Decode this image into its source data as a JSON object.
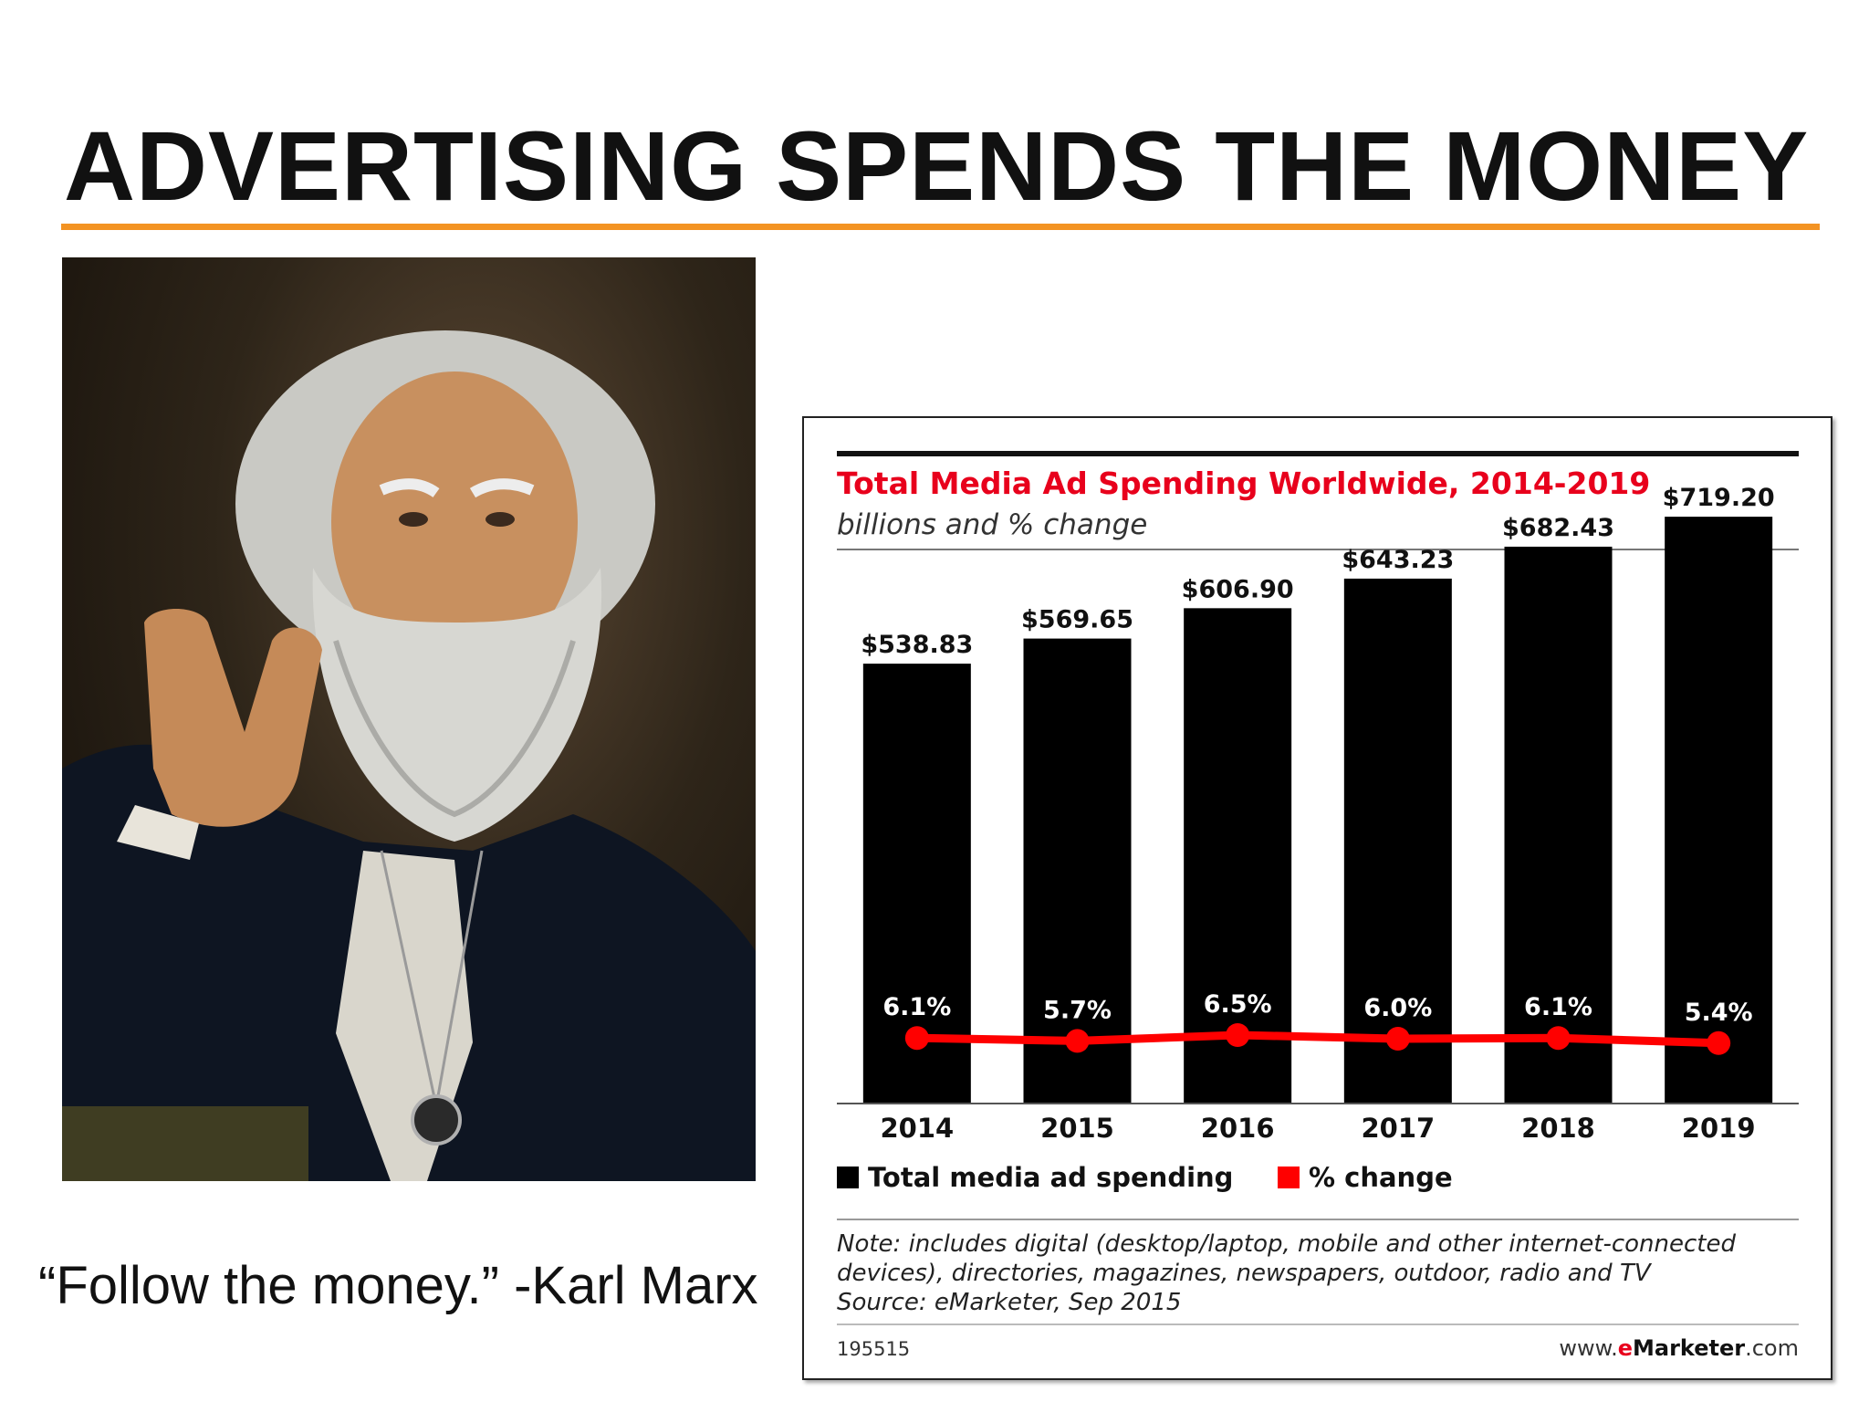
{
  "slide": {
    "title": "ADVERTISING SPENDS THE MONEY",
    "quote": "“Follow the money.” -Karl Marx",
    "accent_color": "#f39323"
  },
  "chart_data": {
    "type": "bar",
    "title": "Total Media Ad Spending Worldwide, 2014-2019",
    "subtitle": "billions and % change",
    "categories": [
      "2014",
      "2015",
      "2016",
      "2017",
      "2018",
      "2019"
    ],
    "series": [
      {
        "name": "Total media ad spending",
        "type": "bar",
        "color": "#000000",
        "values": [
          538.83,
          569.65,
          606.9,
          643.23,
          682.43,
          719.2
        ],
        "labels": [
          "$538.83",
          "$569.65",
          "$606.90",
          "$643.23",
          "$682.43",
          "$719.20"
        ]
      },
      {
        "name": "% change",
        "type": "line",
        "color": "#ff0000",
        "values": [
          6.1,
          5.7,
          6.5,
          6.0,
          6.1,
          5.4
        ],
        "labels": [
          "6.1%",
          "5.7%",
          "6.5%",
          "6.0%",
          "6.1%",
          "5.4%"
        ]
      }
    ],
    "ylim": [
      0,
      760
    ],
    "grid": false,
    "legend": "bottom-left",
    "note_lines": [
      "Note: includes digital (desktop/laptop, mobile and other internet-connected",
      "devices), directories, magazines, newspapers, outdoor, radio and TV",
      "Source: eMarketer, Sep 2015"
    ],
    "chart_id": "195515",
    "footer_brand": {
      "prefix": "www.",
      "highlight": "e",
      "name": "Marketer",
      "suffix": ".com"
    },
    "title_color": "#e8001c"
  }
}
